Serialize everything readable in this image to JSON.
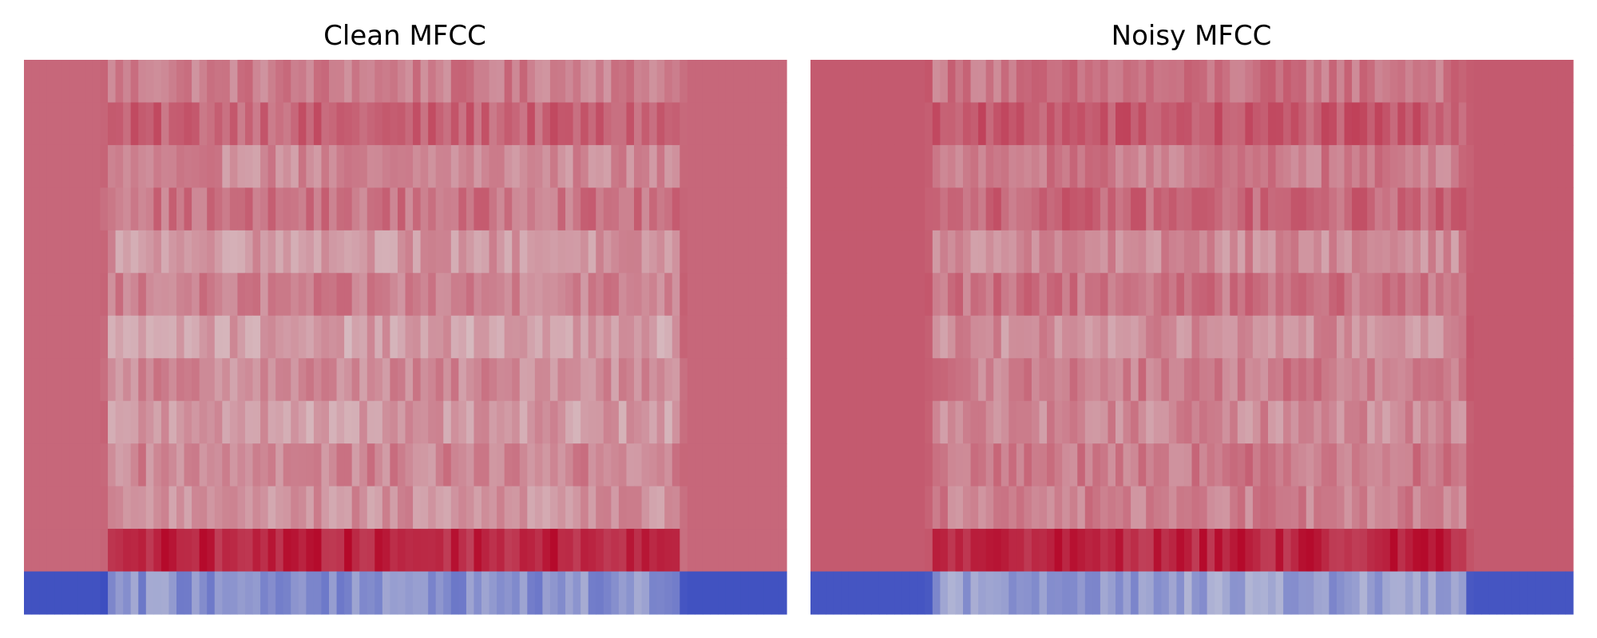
{
  "chart_data": [
    {
      "type": "heatmap",
      "title": "Clean MFCC",
      "xlabel": "",
      "ylabel": "",
      "n_coefficients": 13,
      "n_frames": 100,
      "colormap": "coolwarm",
      "colors": {
        "low": "#3b4cc0",
        "mid": "#dddcdc",
        "high": "#b40426",
        "silence": "#f2997a"
      },
      "silence_frames": {
        "start_end": 11,
        "tail_start": 86
      },
      "silence_value": 0.77,
      "bottom_row_silence_value": 0.02,
      "coefficient_row_levels": [
        0.72,
        0.78,
        0.69,
        0.74,
        0.66,
        0.71,
        0.64,
        0.69,
        0.65,
        0.7,
        0.67,
        0.72,
        0.24
      ]
    },
    {
      "type": "heatmap",
      "title": "Noisy MFCC",
      "xlabel": "",
      "ylabel": "",
      "n_coefficients": 13,
      "n_frames": 100,
      "colormap": "coolwarm",
      "colors": {
        "low": "#3b4cc0",
        "mid": "#dddcdc",
        "high": "#b40426",
        "silence": "#ee8a6e"
      },
      "silence_frames": {
        "start_end": 16,
        "tail_start": 86
      },
      "silence_value": 0.8,
      "bottom_row_silence_value": 0.03,
      "coefficient_row_levels": [
        0.74,
        0.8,
        0.72,
        0.77,
        0.69,
        0.74,
        0.68,
        0.72,
        0.69,
        0.73,
        0.71,
        0.75,
        0.28
      ]
    }
  ]
}
